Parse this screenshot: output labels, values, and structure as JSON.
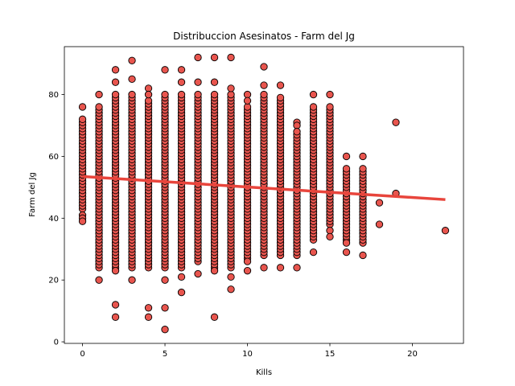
{
  "chart_data": {
    "type": "scatter",
    "title": "Distribuccion Asesinatos - Farm del Jg",
    "xlabel": "Kills",
    "ylabel": "Farm del Jg",
    "xlim": [
      -1.1,
      23.1
    ],
    "ylim": [
      -0.5,
      95.5
    ],
    "xticks": [
      0,
      5,
      10,
      15,
      20
    ],
    "yticks": [
      0,
      20,
      40,
      60,
      80
    ],
    "grid": false,
    "legend": "none",
    "marker_color": "#e8554e",
    "marker_edge": "#000000",
    "line_color": "#e8453c",
    "regression": {
      "slope": -0.34,
      "intercept": 53.5,
      "x_range": [
        0,
        22
      ]
    },
    "columns": [
      {
        "x": 0,
        "min": 39,
        "max": 76
      },
      {
        "x": 1,
        "min": 20,
        "max": 80
      },
      {
        "x": 2,
        "min": 8,
        "max": 88
      },
      {
        "x": 3,
        "min": 20,
        "max": 91
      },
      {
        "x": 4,
        "min": 8,
        "max": 82
      },
      {
        "x": 5,
        "min": 4,
        "max": 88
      },
      {
        "x": 6,
        "min": 16,
        "max": 88
      },
      {
        "x": 7,
        "min": 22,
        "max": 92
      },
      {
        "x": 8,
        "min": 8,
        "max": 92
      },
      {
        "x": 9,
        "min": 17,
        "max": 92
      },
      {
        "x": 10,
        "min": 23,
        "max": 80
      },
      {
        "x": 11,
        "min": 24,
        "max": 89
      },
      {
        "x": 12,
        "min": 24,
        "max": 83
      },
      {
        "x": 13,
        "min": 24,
        "max": 71
      },
      {
        "x": 14,
        "min": 29,
        "max": 80
      },
      {
        "x": 15,
        "min": 34,
        "max": 80
      },
      {
        "x": 16,
        "min": 29,
        "max": 60
      },
      {
        "x": 17,
        "min": 28,
        "max": 60
      }
    ],
    "points": [
      [
        0,
        76
      ],
      [
        0,
        72
      ],
      [
        0,
        70
      ],
      [
        0,
        68
      ],
      [
        0,
        66
      ],
      [
        0,
        64
      ],
      [
        0,
        62
      ],
      [
        0,
        60
      ],
      [
        0,
        58
      ],
      [
        0,
        56
      ],
      [
        0,
        54
      ],
      [
        0,
        52
      ],
      [
        0,
        50
      ],
      [
        0,
        48
      ],
      [
        0,
        46
      ],
      [
        0,
        44
      ],
      [
        0,
        41
      ],
      [
        0,
        40
      ],
      [
        0,
        39
      ],
      [
        1,
        80
      ],
      [
        1,
        76
      ],
      [
        1,
        72
      ],
      [
        1,
        70
      ],
      [
        1,
        68
      ],
      [
        1,
        66
      ],
      [
        1,
        64
      ],
      [
        1,
        62
      ],
      [
        1,
        60
      ],
      [
        1,
        58
      ],
      [
        1,
        56
      ],
      [
        1,
        54
      ],
      [
        1,
        52
      ],
      [
        1,
        50
      ],
      [
        1,
        48
      ],
      [
        1,
        46
      ],
      [
        1,
        44
      ],
      [
        1,
        42
      ],
      [
        1,
        40
      ],
      [
        1,
        38
      ],
      [
        1,
        36
      ],
      [
        1,
        34
      ],
      [
        1,
        32
      ],
      [
        1,
        27
      ],
      [
        1,
        20
      ],
      [
        2,
        88
      ],
      [
        2,
        84
      ],
      [
        2,
        80
      ],
      [
        2,
        76
      ],
      [
        2,
        72
      ],
      [
        2,
        70
      ],
      [
        2,
        68
      ],
      [
        2,
        66
      ],
      [
        2,
        64
      ],
      [
        2,
        62
      ],
      [
        2,
        60
      ],
      [
        2,
        58
      ],
      [
        2,
        56
      ],
      [
        2,
        54
      ],
      [
        2,
        52
      ],
      [
        2,
        50
      ],
      [
        2,
        48
      ],
      [
        2,
        46
      ],
      [
        2,
        44
      ],
      [
        2,
        42
      ],
      [
        2,
        40
      ],
      [
        2,
        38
      ],
      [
        2,
        36
      ],
      [
        2,
        34
      ],
      [
        2,
        32
      ],
      [
        2,
        30
      ],
      [
        2,
        28
      ],
      [
        2,
        24
      ],
      [
        2,
        23
      ],
      [
        2,
        12
      ],
      [
        2,
        8
      ],
      [
        3,
        91
      ],
      [
        3,
        85
      ],
      [
        3,
        80
      ],
      [
        3,
        76
      ],
      [
        3,
        72
      ],
      [
        3,
        70
      ],
      [
        3,
        68
      ],
      [
        3,
        66
      ],
      [
        3,
        64
      ],
      [
        3,
        62
      ],
      [
        3,
        60
      ],
      [
        3,
        58
      ],
      [
        3,
        56
      ],
      [
        3,
        54
      ],
      [
        3,
        52
      ],
      [
        3,
        50
      ],
      [
        3,
        48
      ],
      [
        3,
        46
      ],
      [
        3,
        44
      ],
      [
        3,
        42
      ],
      [
        3,
        40
      ],
      [
        3,
        38
      ],
      [
        3,
        36
      ],
      [
        3,
        34
      ],
      [
        3,
        32
      ],
      [
        3,
        30
      ],
      [
        3,
        28
      ],
      [
        3,
        26
      ],
      [
        3,
        24
      ],
      [
        3,
        20
      ],
      [
        4,
        82
      ],
      [
        4,
        80
      ],
      [
        4,
        76
      ],
      [
        4,
        72
      ],
      [
        4,
        70
      ],
      [
        4,
        68
      ],
      [
        4,
        66
      ],
      [
        4,
        64
      ],
      [
        4,
        62
      ],
      [
        4,
        60
      ],
      [
        4,
        58
      ],
      [
        4,
        56
      ],
      [
        4,
        54
      ],
      [
        4,
        52
      ],
      [
        4,
        50
      ],
      [
        4,
        48
      ],
      [
        4,
        46
      ],
      [
        4,
        44
      ],
      [
        4,
        42
      ],
      [
        4,
        40
      ],
      [
        4,
        38
      ],
      [
        4,
        36
      ],
      [
        4,
        34
      ],
      [
        4,
        32
      ],
      [
        4,
        30
      ],
      [
        4,
        28
      ],
      [
        4,
        26
      ],
      [
        4,
        24
      ],
      [
        4,
        11
      ],
      [
        4,
        8
      ],
      [
        5,
        88
      ],
      [
        5,
        80
      ],
      [
        5,
        76
      ],
      [
        5,
        72
      ],
      [
        5,
        70
      ],
      [
        5,
        68
      ],
      [
        5,
        66
      ],
      [
        5,
        64
      ],
      [
        5,
        62
      ],
      [
        5,
        60
      ],
      [
        5,
        58
      ],
      [
        5,
        56
      ],
      [
        5,
        54
      ],
      [
        5,
        52
      ],
      [
        5,
        50
      ],
      [
        5,
        48
      ],
      [
        5,
        46
      ],
      [
        5,
        44
      ],
      [
        5,
        42
      ],
      [
        5,
        40
      ],
      [
        5,
        38
      ],
      [
        5,
        36
      ],
      [
        5,
        34
      ],
      [
        5,
        32
      ],
      [
        5,
        30
      ],
      [
        5,
        28
      ],
      [
        5,
        26
      ],
      [
        5,
        24
      ],
      [
        5,
        20
      ],
      [
        5,
        11
      ],
      [
        5,
        4
      ],
      [
        6,
        88
      ],
      [
        6,
        84
      ],
      [
        6,
        80
      ],
      [
        6,
        76
      ],
      [
        6,
        72
      ],
      [
        6,
        70
      ],
      [
        6,
        68
      ],
      [
        6,
        66
      ],
      [
        6,
        64
      ],
      [
        6,
        62
      ],
      [
        6,
        60
      ],
      [
        6,
        58
      ],
      [
        6,
        56
      ],
      [
        6,
        54
      ],
      [
        6,
        52
      ],
      [
        6,
        50
      ],
      [
        6,
        48
      ],
      [
        6,
        46
      ],
      [
        6,
        44
      ],
      [
        6,
        42
      ],
      [
        6,
        40
      ],
      [
        6,
        38
      ],
      [
        6,
        36
      ],
      [
        6,
        34
      ],
      [
        6,
        32
      ],
      [
        6,
        30
      ],
      [
        6,
        28
      ],
      [
        6,
        26
      ],
      [
        6,
        24
      ],
      [
        6,
        21
      ],
      [
        6,
        16
      ],
      [
        7,
        92
      ],
      [
        7,
        84
      ],
      [
        7,
        80
      ],
      [
        7,
        76
      ],
      [
        7,
        72
      ],
      [
        7,
        70
      ],
      [
        7,
        68
      ],
      [
        7,
        66
      ],
      [
        7,
        64
      ],
      [
        7,
        62
      ],
      [
        7,
        60
      ],
      [
        7,
        58
      ],
      [
        7,
        56
      ],
      [
        7,
        54
      ],
      [
        7,
        52
      ],
      [
        7,
        50
      ],
      [
        7,
        48
      ],
      [
        7,
        46
      ],
      [
        7,
        44
      ],
      [
        7,
        42
      ],
      [
        7,
        40
      ],
      [
        7,
        38
      ],
      [
        7,
        36
      ],
      [
        7,
        34
      ],
      [
        7,
        32
      ],
      [
        7,
        30
      ],
      [
        7,
        28
      ],
      [
        7,
        26
      ],
      [
        7,
        22
      ],
      [
        8,
        92
      ],
      [
        8,
        84
      ],
      [
        8,
        80
      ],
      [
        8,
        76
      ],
      [
        8,
        72
      ],
      [
        8,
        70
      ],
      [
        8,
        68
      ],
      [
        8,
        66
      ],
      [
        8,
        64
      ],
      [
        8,
        62
      ],
      [
        8,
        60
      ],
      [
        8,
        58
      ],
      [
        8,
        56
      ],
      [
        8,
        54
      ],
      [
        8,
        52
      ],
      [
        8,
        50
      ],
      [
        8,
        48
      ],
      [
        8,
        46
      ],
      [
        8,
        44
      ],
      [
        8,
        42
      ],
      [
        8,
        40
      ],
      [
        8,
        38
      ],
      [
        8,
        36
      ],
      [
        8,
        34
      ],
      [
        8,
        32
      ],
      [
        8,
        30
      ],
      [
        8,
        28
      ],
      [
        8,
        26
      ],
      [
        8,
        23
      ],
      [
        8,
        8
      ],
      [
        9,
        92
      ],
      [
        9,
        82
      ],
      [
        9,
        80
      ],
      [
        9,
        76
      ],
      [
        9,
        72
      ],
      [
        9,
        70
      ],
      [
        9,
        68
      ],
      [
        9,
        66
      ],
      [
        9,
        64
      ],
      [
        9,
        62
      ],
      [
        9,
        60
      ],
      [
        9,
        58
      ],
      [
        9,
        56
      ],
      [
        9,
        54
      ],
      [
        9,
        52
      ],
      [
        9,
        50
      ],
      [
        9,
        48
      ],
      [
        9,
        46
      ],
      [
        9,
        44
      ],
      [
        9,
        42
      ],
      [
        9,
        40
      ],
      [
        9,
        38
      ],
      [
        9,
        36
      ],
      [
        9,
        34
      ],
      [
        9,
        32
      ],
      [
        9,
        30
      ],
      [
        9,
        28
      ],
      [
        9,
        24
      ],
      [
        9,
        21
      ],
      [
        9,
        17
      ],
      [
        10,
        80
      ],
      [
        10,
        78
      ],
      [
        10,
        76
      ],
      [
        10,
        72
      ],
      [
        10,
        70
      ],
      [
        10,
        68
      ],
      [
        10,
        66
      ],
      [
        10,
        64
      ],
      [
        10,
        62
      ],
      [
        10,
        60
      ],
      [
        10,
        58
      ],
      [
        10,
        56
      ],
      [
        10,
        54
      ],
      [
        10,
        52
      ],
      [
        10,
        50
      ],
      [
        10,
        48
      ],
      [
        10,
        46
      ],
      [
        10,
        44
      ],
      [
        10,
        42
      ],
      [
        10,
        40
      ],
      [
        10,
        38
      ],
      [
        10,
        36
      ],
      [
        10,
        34
      ],
      [
        10,
        32
      ],
      [
        10,
        30
      ],
      [
        10,
        28
      ],
      [
        10,
        26
      ],
      [
        10,
        23
      ],
      [
        11,
        89
      ],
      [
        11,
        83
      ],
      [
        11,
        80
      ],
      [
        11,
        76
      ],
      [
        11,
        72
      ],
      [
        11,
        70
      ],
      [
        11,
        68
      ],
      [
        11,
        66
      ],
      [
        11,
        64
      ],
      [
        11,
        62
      ],
      [
        11,
        60
      ],
      [
        11,
        58
      ],
      [
        11,
        56
      ],
      [
        11,
        54
      ],
      [
        11,
        52
      ],
      [
        11,
        50
      ],
      [
        11,
        48
      ],
      [
        11,
        46
      ],
      [
        11,
        44
      ],
      [
        11,
        42
      ],
      [
        11,
        40
      ],
      [
        11,
        38
      ],
      [
        11,
        36
      ],
      [
        11,
        34
      ],
      [
        11,
        32
      ],
      [
        11,
        30
      ],
      [
        11,
        28
      ],
      [
        11,
        24
      ],
      [
        12,
        83
      ],
      [
        12,
        78
      ],
      [
        12,
        74
      ],
      [
        12,
        70
      ],
      [
        12,
        68
      ],
      [
        12,
        66
      ],
      [
        12,
        64
      ],
      [
        12,
        62
      ],
      [
        12,
        60
      ],
      [
        12,
        58
      ],
      [
        12,
        56
      ],
      [
        12,
        54
      ],
      [
        12,
        52
      ],
      [
        12,
        50
      ],
      [
        12,
        48
      ],
      [
        12,
        46
      ],
      [
        12,
        44
      ],
      [
        12,
        42
      ],
      [
        12,
        40
      ],
      [
        12,
        38
      ],
      [
        12,
        36
      ],
      [
        12,
        34
      ],
      [
        12,
        32
      ],
      [
        12,
        28
      ],
      [
        12,
        24
      ],
      [
        13,
        71
      ],
      [
        13,
        70
      ],
      [
        13,
        68
      ],
      [
        13,
        66
      ],
      [
        13,
        64
      ],
      [
        13,
        62
      ],
      [
        13,
        60
      ],
      [
        13,
        58
      ],
      [
        13,
        56
      ],
      [
        13,
        54
      ],
      [
        13,
        52
      ],
      [
        13,
        50
      ],
      [
        13,
        48
      ],
      [
        13,
        46
      ],
      [
        13,
        44
      ],
      [
        13,
        42
      ],
      [
        13,
        40
      ],
      [
        13,
        38
      ],
      [
        13,
        36
      ],
      [
        13,
        34
      ],
      [
        13,
        32
      ],
      [
        13,
        30
      ],
      [
        13,
        28
      ],
      [
        13,
        24
      ],
      [
        14,
        80
      ],
      [
        14,
        66
      ],
      [
        14,
        64
      ],
      [
        14,
        62
      ],
      [
        14,
        60
      ],
      [
        14,
        58
      ],
      [
        14,
        56
      ],
      [
        14,
        54
      ],
      [
        14,
        52
      ],
      [
        14,
        50
      ],
      [
        14,
        48
      ],
      [
        14,
        46
      ],
      [
        14,
        44
      ],
      [
        14,
        42
      ],
      [
        14,
        40
      ],
      [
        14,
        38
      ],
      [
        14,
        36
      ],
      [
        14,
        34
      ],
      [
        14,
        33
      ],
      [
        14,
        29
      ],
      [
        15,
        80
      ],
      [
        15,
        68
      ],
      [
        15,
        66
      ],
      [
        15,
        64
      ],
      [
        15,
        60
      ],
      [
        15,
        58
      ],
      [
        15,
        56
      ],
      [
        15,
        54
      ],
      [
        15,
        52
      ],
      [
        15,
        50
      ],
      [
        15,
        48
      ],
      [
        15,
        46
      ],
      [
        15,
        44
      ],
      [
        15,
        42
      ],
      [
        15,
        40
      ],
      [
        15,
        38
      ],
      [
        15,
        36
      ],
      [
        15,
        34
      ],
      [
        16,
        60
      ],
      [
        16,
        56
      ],
      [
        16,
        52
      ],
      [
        16,
        50
      ],
      [
        16,
        48
      ],
      [
        16,
        46
      ],
      [
        16,
        44
      ],
      [
        16,
        42
      ],
      [
        16,
        40
      ],
      [
        16,
        36
      ],
      [
        16,
        32
      ],
      [
        16,
        29
      ],
      [
        17,
        60
      ],
      [
        17,
        56
      ],
      [
        17,
        48
      ],
      [
        17,
        40
      ],
      [
        17,
        38
      ],
      [
        17,
        36
      ],
      [
        17,
        28
      ],
      [
        18,
        45
      ],
      [
        18,
        38
      ],
      [
        19,
        71
      ],
      [
        19,
        48
      ],
      [
        22,
        36
      ]
    ]
  }
}
